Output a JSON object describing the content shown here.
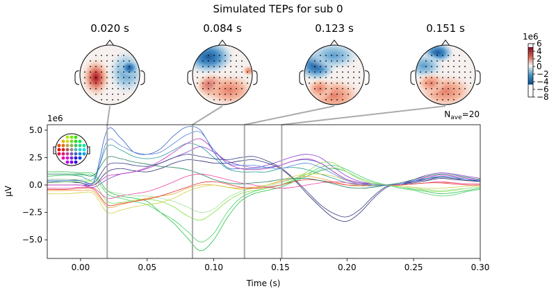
{
  "chart_data": {
    "type": "line",
    "title": "Simulated TEPs for sub 0",
    "xlabel": "Time (s)",
    "ylabel": "µV",
    "y_offset_label": "1e6",
    "nave_label": {
      "prefix": "N",
      "sub": "ave",
      "suffix": "=20"
    },
    "xlim": [
      -0.025,
      0.3
    ],
    "ylim": [
      -6.7,
      5.5
    ],
    "xticks": [
      0.0,
      0.05,
      0.1,
      0.15,
      0.2,
      0.25,
      0.3
    ],
    "xtick_labels": [
      "0.00",
      "0.05",
      "0.10",
      "0.15",
      "0.20",
      "0.25",
      "0.30"
    ],
    "yticks": [
      5.0,
      2.5,
      0.0,
      -2.5,
      -5.0
    ],
    "ytick_labels": [
      "5.0",
      "2.5",
      "0.0",
      "−2.5",
      "−5.0"
    ],
    "grid": false,
    "topomap_times": [
      0.02,
      0.084,
      0.123,
      0.151
    ],
    "topomap_labels": [
      "0.020 s",
      "0.084 s",
      "0.123 s",
      "0.151 s"
    ],
    "colorbar": {
      "offset_label": "1e6",
      "ticks": [
        6,
        4,
        2,
        0,
        -2,
        -4,
        -6,
        -8
      ],
      "tick_labels": [
        "6",
        "4",
        "2",
        "0",
        "−2",
        "−4",
        "−6",
        "−8"
      ],
      "range": [
        -8,
        6
      ],
      "colormap": "RdBu_r"
    },
    "x": [
      -0.025,
      -0.01,
      0,
      0.01,
      0.02,
      0.03,
      0.04,
      0.05,
      0.06,
      0.07,
      0.08,
      0.09,
      0.1,
      0.11,
      0.12,
      0.13,
      0.14,
      0.15,
      0.16,
      0.17,
      0.18,
      0.19,
      0.2,
      0.21,
      0.22,
      0.23,
      0.24,
      0.25,
      0.26,
      0.27,
      0.28,
      0.29,
      0.3
    ],
    "series": [
      {
        "color": "#3060c0",
        "values": [
          0.3,
          0.3,
          0.2,
          0.3,
          5.0,
          4.3,
          3.0,
          2.8,
          3.3,
          4.5,
          5.3,
          5.0,
          3.0,
          1.6,
          1.5,
          1.5,
          1.6,
          1.8,
          2.2,
          2.3,
          2.0,
          1.2,
          0.5,
          0.2,
          0.1,
          0,
          0,
          0.3,
          0.6,
          0.8,
          0.7,
          0.5,
          0.4
        ]
      },
      {
        "color": "#2a9a9a",
        "values": [
          0.8,
          0.9,
          0.8,
          0.6,
          3.5,
          3.2,
          2.6,
          2.4,
          2.6,
          3.2,
          3.8,
          3.5,
          2.5,
          1.5,
          1.2,
          1.2,
          1.2,
          1.5,
          1.6,
          1.4,
          1.0,
          0.6,
          0.2,
          0,
          -0.1,
          0,
          0.1,
          0.4,
          0.6,
          0.7,
          0.6,
          0.4,
          0.5
        ]
      },
      {
        "color": "#8a3ad0",
        "values": [
          0,
          0,
          0,
          -0.2,
          0.5,
          1.0,
          1.2,
          1.5,
          2.0,
          2.5,
          3.0,
          3.5,
          3.0,
          2.2,
          1.8,
          1.6,
          1.8,
          2.2,
          2.6,
          2.8,
          2.5,
          1.6,
          0.8,
          0.3,
          0.1,
          0,
          0.1,
          0.5,
          0.9,
          1.1,
          1.0,
          0.8,
          0.6
        ]
      },
      {
        "color": "#2a2a70",
        "values": [
          0.2,
          0.3,
          0.2,
          0,
          1.2,
          1.5,
          1.3,
          1.2,
          1.5,
          2.0,
          2.3,
          2.2,
          2.0,
          2.0,
          2.2,
          2.3,
          2.0,
          1.5,
          0.5,
          -0.8,
          -2.0,
          -3.0,
          -3.3,
          -2.5,
          -1.2,
          -0.2,
          0.1,
          0.2,
          0.4,
          0.6,
          0.5,
          0.4,
          0.3
        ]
      },
      {
        "color": "#303a80",
        "values": [
          0.5,
          0.5,
          0.4,
          0.2,
          1.8,
          2.0,
          1.8,
          1.7,
          2.0,
          2.5,
          2.8,
          2.6,
          2.4,
          2.3,
          2.5,
          2.6,
          2.2,
          1.6,
          0.6,
          -0.6,
          -1.8,
          -2.6,
          -2.9,
          -2.2,
          -1.0,
          -0.1,
          0.1,
          0.3,
          0.5,
          0.7,
          0.6,
          0.5,
          0.3
        ]
      },
      {
        "color": "#20c040",
        "values": [
          1.2,
          1.2,
          1.1,
          1.0,
          -0.5,
          -1.0,
          -1.2,
          -1.5,
          -2.5,
          -3.5,
          -4.8,
          -6.0,
          -5.0,
          -3.0,
          -1.5,
          -0.8,
          -0.5,
          -0.2,
          0.3,
          0.8,
          1.3,
          1.5,
          1.2,
          0.6,
          0.2,
          0,
          -0.2,
          -0.4,
          -0.6,
          -0.8,
          -0.7,
          -0.5,
          -0.3
        ]
      },
      {
        "color": "#40d060",
        "values": [
          0.8,
          0.9,
          0.9,
          0.8,
          -0.8,
          -1.2,
          -1.5,
          -1.8,
          -2.5,
          -3.2,
          -4.2,
          -5.2,
          -4.4,
          -2.5,
          -1.2,
          -0.6,
          -0.3,
          0,
          0.4,
          1.0,
          1.6,
          1.8,
          1.4,
          0.8,
          0.3,
          0,
          -0.3,
          -0.5,
          -0.8,
          -1.0,
          -0.9,
          -0.6,
          -0.4
        ]
      },
      {
        "color": "#80e040",
        "values": [
          0.2,
          0.3,
          0.3,
          0.2,
          -1.5,
          -1.6,
          -1.4,
          -1.3,
          -1.5,
          -2.0,
          -2.8,
          -3.2,
          -2.5,
          -1.5,
          -0.8,
          -0.5,
          -0.3,
          0,
          0.5,
          1.2,
          2.0,
          2.0,
          1.2,
          0.5,
          0.1,
          0,
          -0.2,
          -0.3,
          -0.5,
          -0.6,
          -0.5,
          -0.3,
          -0.2
        ]
      },
      {
        "color": "#f0a030",
        "values": [
          -0.5,
          -0.5,
          -0.5,
          -0.6,
          -2.0,
          -1.8,
          -1.5,
          -1.2,
          -1.0,
          -0.8,
          -0.3,
          0,
          0,
          -0.2,
          -0.3,
          -0.2,
          0,
          0.3,
          0.6,
          0.8,
          0.6,
          0.3,
          0,
          -0.1,
          0,
          0,
          0,
          0.1,
          0.2,
          0.2,
          0.2,
          0.1,
          0.1
        ]
      },
      {
        "color": "#f040a0",
        "values": [
          -0.3,
          -0.3,
          -0.2,
          -0.3,
          -1.2,
          -1.0,
          -0.8,
          -0.6,
          -0.2,
          0.3,
          0.8,
          1.0,
          0.8,
          0.5,
          0.2,
          0,
          -0.2,
          -0.3,
          -0.2,
          0,
          0.2,
          0.3,
          0.2,
          0.1,
          0,
          0,
          0,
          0.1,
          0.2,
          0.3,
          0.2,
          0.1,
          0.1
        ]
      },
      {
        "color": "#c030c0",
        "values": [
          0,
          0,
          0,
          0,
          0.8,
          1.0,
          1.2,
          1.6,
          2.2,
          3.0,
          3.8,
          4.2,
          3.2,
          2.0,
          1.5,
          1.4,
          1.5,
          1.8,
          2.2,
          2.4,
          2.0,
          1.2,
          0.5,
          0.2,
          0,
          0,
          0.1,
          0.4,
          0.7,
          0.9,
          0.8,
          0.6,
          0.4
        ]
      },
      {
        "color": "#a0e0a0",
        "values": [
          0.5,
          0.5,
          0.5,
          0.4,
          -0.5,
          -0.8,
          -1.0,
          -1.0,
          -1.2,
          -1.5,
          -2.0,
          -2.5,
          -2.2,
          -1.2,
          -0.6,
          -0.3,
          -0.1,
          0.2,
          0.6,
          1.0,
          1.4,
          1.6,
          1.2,
          0.6,
          0.2,
          0,
          -0.2,
          -0.3,
          -0.4,
          -0.5,
          -0.4,
          -0.3,
          -0.2
        ]
      },
      {
        "color": "#d0d040",
        "values": [
          -0.8,
          -0.8,
          -0.7,
          -0.8,
          -2.5,
          -2.3,
          -2.0,
          -1.8,
          -1.6,
          -1.2,
          -0.6,
          -0.2,
          0,
          -0.2,
          -0.4,
          -0.3,
          0,
          0.4,
          0.8,
          1.0,
          1.0,
          0.8,
          0.4,
          0.1,
          0,
          0,
          -0.1,
          -0.2,
          -0.3,
          -0.3,
          -0.2,
          -0.1,
          -0.1
        ]
      },
      {
        "color": "#e03030",
        "values": [
          -0.4,
          -0.4,
          -0.3,
          -0.4,
          -1.8,
          -1.7,
          -1.5,
          -1.3,
          -1.0,
          -0.6,
          -0.2,
          0.2,
          0.3,
          0.1,
          -0.2,
          -0.3,
          -0.2,
          0,
          0.3,
          0.5,
          0.4,
          0.2,
          0,
          0,
          0,
          0,
          0,
          0.1,
          0.2,
          0.2,
          0.1,
          0,
          0
        ]
      },
      {
        "color": "#5080e0",
        "values": [
          0.4,
          0.4,
          0.4,
          0.3,
          4.0,
          3.6,
          3.0,
          2.8,
          3.0,
          3.8,
          4.6,
          4.8,
          3.2,
          2.0,
          1.8,
          1.8,
          1.6,
          1.5,
          1.8,
          2.0,
          1.6,
          1.0,
          0.4,
          0.1,
          0,
          0,
          0.1,
          0.4,
          0.6,
          0.8,
          0.7,
          0.5,
          0.4
        ]
      },
      {
        "color": "#208060",
        "values": [
          1.0,
          1.0,
          1.0,
          0.9,
          2.5,
          2.4,
          2.1,
          1.9,
          1.7,
          1.6,
          1.4,
          1.0,
          0.5,
          0.2,
          0.1,
          0.2,
          0.3,
          0.5,
          0.6,
          0.6,
          0.4,
          0.1,
          -0.2,
          -0.3,
          -0.2,
          0,
          0.2,
          0.5,
          0.8,
          1.0,
          0.9,
          0.7,
          0.5
        ]
      }
    ]
  }
}
